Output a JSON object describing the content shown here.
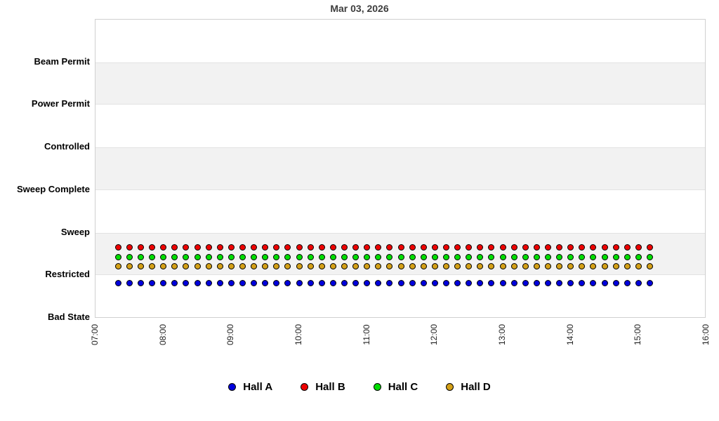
{
  "chart_data": {
    "type": "scatter",
    "title": "Mar 03, 2026",
    "y_categories": [
      "Bad State",
      "Restricted",
      "Sweep",
      "Sweep Complete",
      "Controlled",
      "Power Permit",
      "Beam Permit"
    ],
    "x_ticks": [
      "07:00",
      "08:00",
      "09:00",
      "10:00",
      "11:00",
      "12:00",
      "13:00",
      "14:00",
      "15:00",
      "16:00"
    ],
    "x_range": [
      "07:00",
      "16:00"
    ],
    "sample_interval_minutes": 10,
    "times": [
      "07:20",
      "07:30",
      "07:40",
      "07:50",
      "08:00",
      "08:10",
      "08:20",
      "08:30",
      "08:40",
      "08:50",
      "09:00",
      "09:10",
      "09:20",
      "09:30",
      "09:40",
      "09:50",
      "10:00",
      "10:10",
      "10:20",
      "10:30",
      "10:40",
      "10:50",
      "11:00",
      "11:10",
      "11:20",
      "11:30",
      "11:40",
      "11:50",
      "12:00",
      "12:10",
      "12:20",
      "12:30",
      "12:40",
      "12:50",
      "13:00",
      "13:10",
      "13:20",
      "13:30",
      "13:40",
      "13:50",
      "14:00",
      "14:10",
      "14:20",
      "14:30",
      "14:40",
      "14:50",
      "15:00",
      "15:10"
    ],
    "series": [
      {
        "name": "Hall A",
        "color": "#0000dd",
        "state": "Restricted",
        "display_value": 0.82
      },
      {
        "name": "Hall B",
        "color": "#ee0000",
        "state": "Restricted",
        "display_value": 1.65
      },
      {
        "name": "Hall C",
        "color": "#00dd00",
        "state": "Restricted",
        "display_value": 1.43
      },
      {
        "name": "Hall D",
        "color": "#d4a017",
        "state": "Restricted",
        "display_value": 1.21
      }
    ],
    "legend_position": "bottom",
    "grid": "alternating-horizontal-bands",
    "band_value_ranges": [
      [
        1,
        2
      ],
      [
        3,
        4
      ],
      [
        5,
        6
      ]
    ],
    "band_color": "#f2f2f2",
    "marker": "filled-circle-black-outline"
  }
}
